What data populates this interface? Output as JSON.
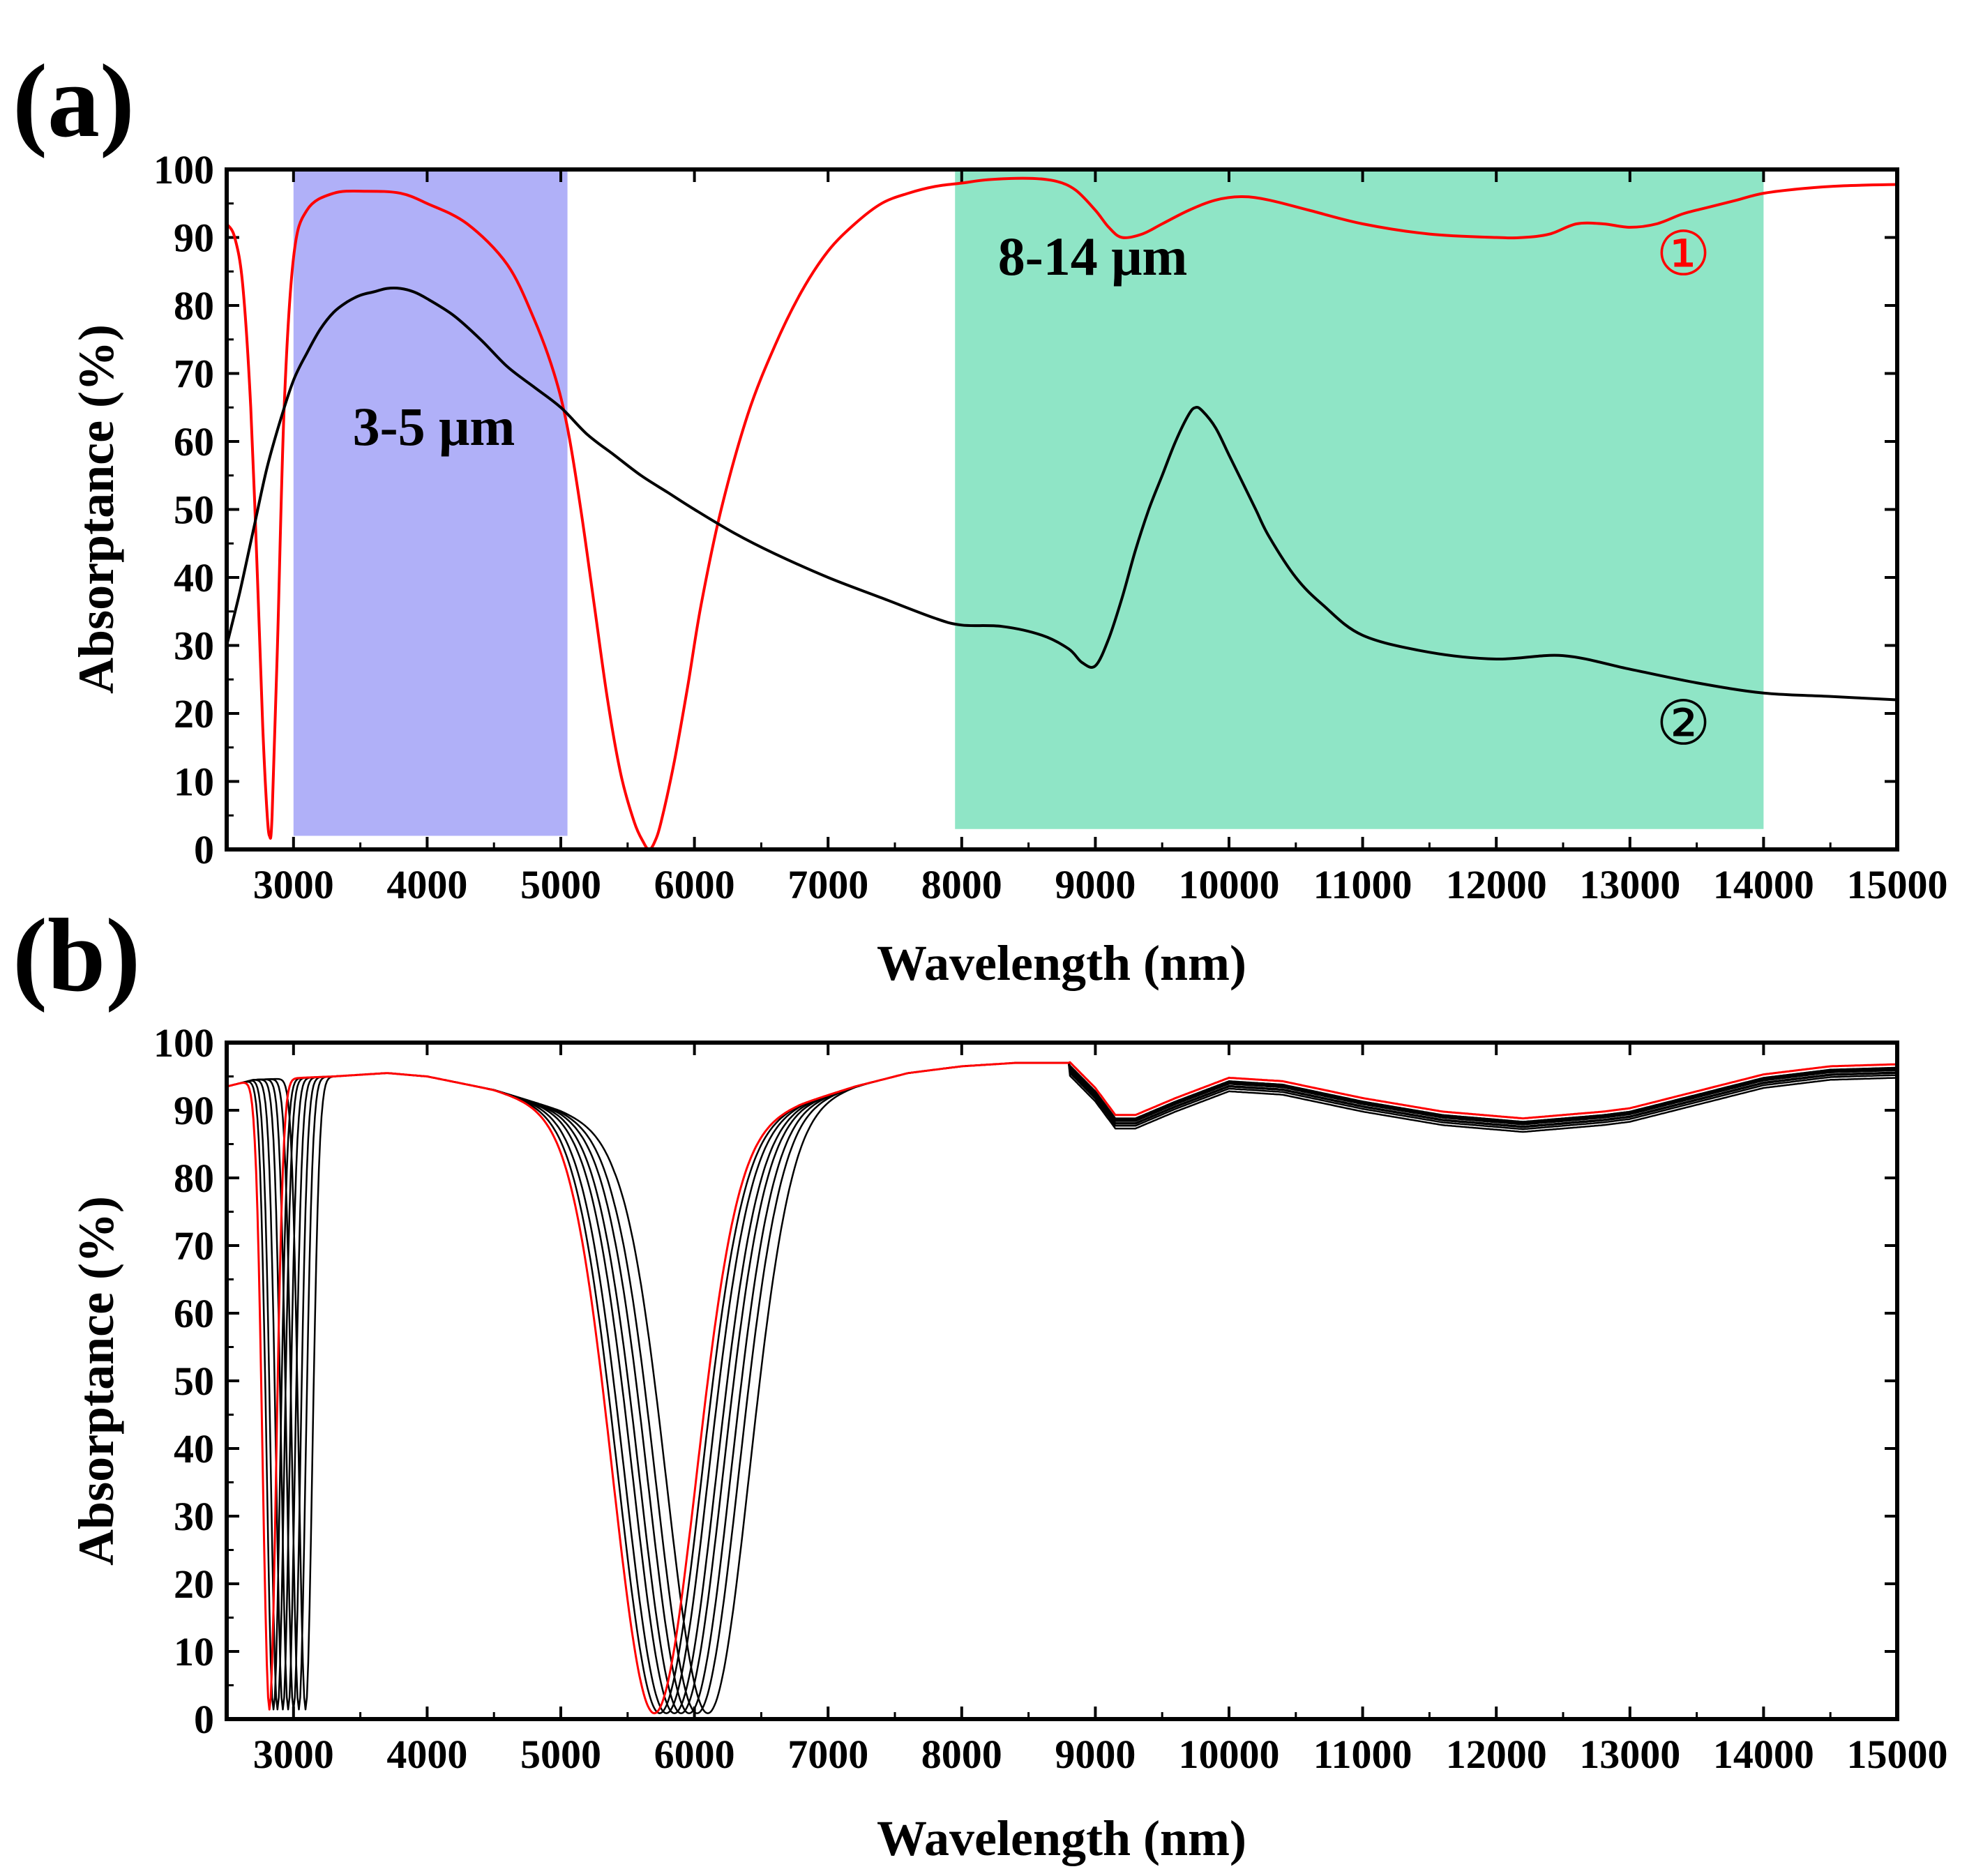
{
  "figure": {
    "panels": [
      "(a)",
      "(b)"
    ]
  },
  "chart_data": [
    {
      "type": "line",
      "panel": "(a)",
      "title": "",
      "xlabel": "Wavelength (nm)",
      "ylabel": "Absorptance (%)",
      "xlim": [
        2500,
        15000
      ],
      "ylim": [
        0,
        100
      ],
      "xticks": [
        3000,
        4000,
        5000,
        6000,
        7000,
        8000,
        9000,
        10000,
        11000,
        12000,
        13000,
        14000,
        15000
      ],
      "yticks": [
        0,
        10,
        20,
        30,
        40,
        50,
        60,
        70,
        80,
        90,
        100
      ],
      "bands": [
        {
          "label": "3-5 μm",
          "x_start": 3000,
          "x_end": 5050,
          "y_top": 100,
          "y_bottom": 2,
          "color": "#b0b0f8"
        },
        {
          "label": "8-14 μm",
          "x_start": 7950,
          "x_end": 14000,
          "y_top": 100,
          "y_bottom": 3,
          "color": "#8fe5c6"
        }
      ],
      "series": [
        {
          "name": "①",
          "color": "#ff0000",
          "x": [
            2500,
            2560,
            2620,
            2680,
            2730,
            2770,
            2800,
            2820,
            2840,
            2880,
            2930,
            3000,
            3100,
            3300,
            3550,
            3800,
            4000,
            4300,
            4600,
            4800,
            4950,
            5050,
            5150,
            5250,
            5350,
            5450,
            5550,
            5620,
            5660,
            5700,
            5750,
            5850,
            5950,
            6050,
            6200,
            6400,
            6600,
            6800,
            7000,
            7200,
            7400,
            7600,
            7800,
            8000,
            8200,
            8500,
            8700,
            8850,
            9000,
            9100,
            9200,
            9350,
            9500,
            9700,
            9900,
            10100,
            10300,
            10600,
            11000,
            11500,
            12000,
            12200,
            12400,
            12600,
            12800,
            13000,
            13200,
            13400,
            13600,
            13800,
            14000,
            14300,
            14600,
            15000
          ],
          "y": [
            92,
            90,
            83,
            65,
            40,
            18,
            6,
            2,
            5,
            30,
            65,
            87,
            94,
            96.5,
            96.8,
            96.5,
            95,
            92,
            86,
            78,
            70,
            62,
            50,
            36,
            22,
            11,
            4,
            1,
            0,
            1,
            4,
            13,
            24,
            36,
            50,
            64,
            74,
            82,
            88,
            92,
            95,
            96.5,
            97.5,
            98,
            98.5,
            98.7,
            98.3,
            97,
            94,
            91.5,
            90,
            90.5,
            92,
            94,
            95.5,
            96,
            95.5,
            94,
            92,
            90.5,
            90,
            90,
            90.5,
            92,
            92,
            91.5,
            92,
            93.5,
            94.5,
            95.5,
            96.5,
            97.2,
            97.6,
            97.8
          ]
        },
        {
          "name": "②",
          "color": "#000000",
          "x": [
            2500,
            2600,
            2700,
            2800,
            2900,
            3000,
            3100,
            3200,
            3300,
            3400,
            3500,
            3600,
            3700,
            3800,
            3900,
            4000,
            4200,
            4400,
            4600,
            4800,
            5000,
            5200,
            5400,
            5600,
            5800,
            6000,
            6300,
            6600,
            7000,
            7400,
            7800,
            8000,
            8300,
            8600,
            8800,
            8900,
            9000,
            9100,
            9200,
            9300,
            9400,
            9500,
            9600,
            9700,
            9750,
            9800,
            9900,
            10000,
            10100,
            10200,
            10300,
            10500,
            10700,
            11000,
            11500,
            12000,
            12500,
            13000,
            13500,
            14000,
            14500,
            15000
          ],
          "y": [
            30,
            38,
            47,
            56,
            63,
            69,
            73,
            76.5,
            79,
            80.5,
            81.5,
            82,
            82.5,
            82.5,
            82,
            81,
            78.5,
            75,
            71,
            68,
            65,
            61,
            58,
            55,
            52.5,
            50,
            46.5,
            43.5,
            40,
            37,
            34,
            33,
            32.8,
            31.5,
            29.5,
            27.5,
            27,
            31,
            37,
            44,
            50,
            55,
            60,
            64,
            65,
            64.5,
            62,
            58,
            54,
            50,
            46,
            40,
            36,
            31.5,
            29,
            28,
            28.5,
            26.5,
            24.5,
            23,
            22.5,
            22
          ]
        }
      ],
      "annotations": [
        {
          "text": "3-5 μm",
          "x": 4050,
          "y": 59.5
        },
        {
          "text": "8-14 μm",
          "x": 8980,
          "y": 84.5
        },
        {
          "text": "①",
          "x": 13400,
          "y": 84.5,
          "color": "#ff0000"
        },
        {
          "text": "②",
          "x": 13400,
          "y": 15.5,
          "color": "#000000"
        }
      ]
    },
    {
      "type": "line",
      "panel": "(b)",
      "title": "",
      "xlabel": "Wavelength (nm)",
      "ylabel": "Absorptance (%)",
      "xlim": [
        2500,
        15000
      ],
      "ylim": [
        0,
        100
      ],
      "xticks": [
        3000,
        4000,
        5000,
        6000,
        7000,
        8000,
        9000,
        10000,
        11000,
        12000,
        13000,
        14000,
        15000
      ],
      "yticks": [
        0,
        10,
        20,
        30,
        40,
        50,
        60,
        70,
        80,
        90,
        100
      ],
      "series": [
        {
          "name": "red",
          "color": "#ff0000",
          "dip1_center": 2820,
          "dip2_center": 5700,
          "plateau_offset": 0.3
        },
        {
          "name": "black-1",
          "color": "#000000",
          "dip1_center": 2850,
          "dip2_center": 5740,
          "plateau_offset": -0.4
        },
        {
          "name": "black-2",
          "color": "#000000",
          "dip1_center": 2880,
          "dip2_center": 5790,
          "plateau_offset": -0.9
        },
        {
          "name": "black-3",
          "color": "#000000",
          "dip1_center": 2920,
          "dip2_center": 5850,
          "plateau_offset": -0.2
        },
        {
          "name": "black-4",
          "color": "#000000",
          "dip1_center": 2960,
          "dip2_center": 5900,
          "plateau_offset": -1.3
        },
        {
          "name": "black-5",
          "color": "#000000",
          "dip1_center": 3000,
          "dip2_center": 5960,
          "plateau_offset": -0.6
        },
        {
          "name": "black-6",
          "color": "#000000",
          "dip1_center": 3040,
          "dip2_center": 6020,
          "plateau_offset": -1.7
        },
        {
          "name": "black-7",
          "color": "#000000",
          "dip1_center": 3090,
          "dip2_center": 6100,
          "plateau_offset": -1.0
        }
      ],
      "shared_profile": {
        "x": [
          2500,
          2700,
          3300,
          3700,
          4000,
          4500,
          5000,
          5400,
          6000,
          6400,
          6800,
          7200,
          7600,
          8000,
          8400,
          8800,
          9000,
          9150,
          9300,
          9600,
          10000,
          10400,
          11000,
          11600,
          12200,
          12500,
          12800,
          13000,
          13500,
          14000,
          14500,
          15000
        ],
        "y": [
          93.5,
          94.5,
          95,
          95.5,
          95,
          93,
          90,
          87,
          85,
          88,
          91,
          93.5,
          95.5,
          96.5,
          97,
          97,
          93,
          89,
          89,
          91.5,
          94.5,
          94,
          91.5,
          89.5,
          88.5,
          89,
          89.5,
          90,
          92.5,
          95,
          96.2,
          96.5
        ]
      }
    }
  ]
}
